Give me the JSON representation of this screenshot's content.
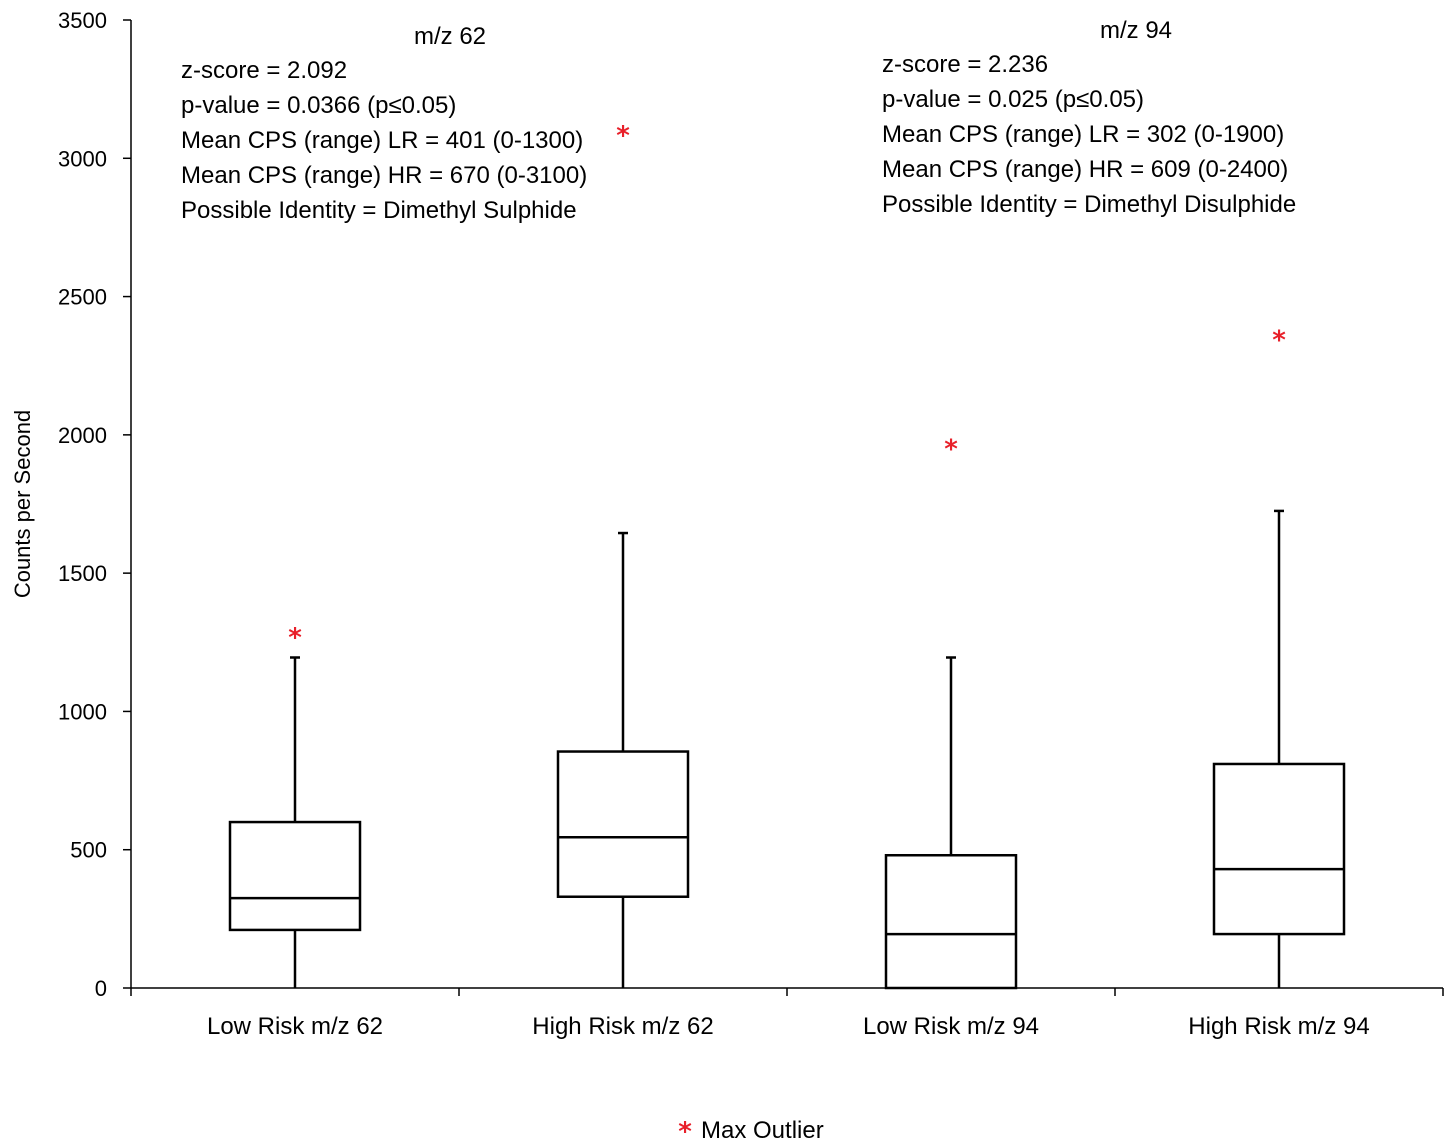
{
  "chart_data": {
    "type": "box",
    "ylabel": "Counts per Second",
    "ylim": [
      0,
      3500
    ],
    "yticks": [
      0,
      500,
      1000,
      1500,
      2000,
      2500,
      3000,
      3500
    ],
    "categories": [
      "Low Risk m/z 62",
      "High Risk m/z 62",
      "Low Risk m/z 94",
      "High Risk m/z 94"
    ],
    "boxes": [
      {
        "category": "Low Risk m/z 62",
        "min": 0,
        "q1": 210,
        "median": 325,
        "q3": 600,
        "max": 1195,
        "max_outlier": 1270
      },
      {
        "category": "High Risk m/z 62",
        "min": 0,
        "q1": 330,
        "median": 545,
        "q3": 855,
        "max": 1645,
        "max_outlier": 3085
      },
      {
        "category": "Low Risk m/z 94",
        "min": 0,
        "q1": 0,
        "median": 195,
        "q3": 480,
        "max": 1195,
        "max_outlier": 1950
      },
      {
        "category": "High Risk m/z 94",
        "min": 0,
        "q1": 195,
        "median": 430,
        "q3": 810,
        "max": 1725,
        "max_outlier": 2345
      }
    ],
    "legend": {
      "placement": "bottom-center",
      "entries": [
        "Max Outlier"
      ]
    },
    "outlier_color": "#e8202a",
    "grid": false,
    "annotations": [
      {
        "title": "m/z 62",
        "lines": [
          "z-score = 2.092",
          "p-value = 0.0366 (p≤0.05)",
          "Mean CPS (range) LR = 401 (0-1300)",
          "Mean CPS (range) HR =  670 (0-3100)",
          "Possible Identity =  Dimethyl Sulphide"
        ]
      },
      {
        "title": "m/z 94",
        "lines": [
          "z-score = 2.236",
          "p-value =  0.025 (p≤0.05)",
          "Mean CPS (range) LR = 302 (0-1900)",
          "Mean CPS (range) HR = 609 (0-2400)",
          "Possible Identity = Dimethyl Disulphide"
        ]
      }
    ]
  }
}
